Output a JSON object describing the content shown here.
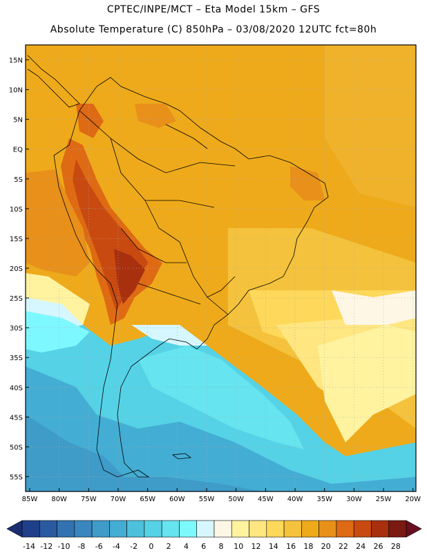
{
  "header": {
    "line1": "CPTEC/INPE/MCT –  Eta Model 15km – GFS",
    "line2": "Absolute Temperature (C) 850hPa – 03/08/2020 12UTC fct=80h"
  },
  "map": {
    "lat_labels": [
      "15N",
      "10N",
      "5N",
      "EQ",
      "5S",
      "10S",
      "15S",
      "20S",
      "25S",
      "30S",
      "35S",
      "40S",
      "45S",
      "50S",
      "55S"
    ],
    "lon_labels": [
      "85W",
      "80W",
      "75W",
      "70W",
      "65W",
      "60W",
      "55W",
      "50W",
      "45W",
      "40W",
      "35W",
      "30W",
      "25W",
      "20W"
    ]
  },
  "colorbar": {
    "levels": [
      "-14",
      "-12",
      "-10",
      "-8",
      "-6",
      "-4",
      "-2",
      "0",
      "2",
      "4",
      "6",
      "8",
      "10",
      "12",
      "14",
      "16",
      "18",
      "20",
      "22",
      "24",
      "26",
      "28"
    ],
    "colors": [
      "#1f3f8a",
      "#2a5aa0",
      "#3272b0",
      "#3a86be",
      "#3f9bc8",
      "#44add3",
      "#4dc0dc",
      "#55d2e6",
      "#66e4f0",
      "#7ef8ff",
      "#d6f7ff",
      "#fff7e6",
      "#fff3a0",
      "#ffe680",
      "#fdd85a",
      "#f4c23c",
      "#eeaa1a",
      "#e8901a",
      "#de6a14",
      "#c84a10",
      "#a8300e",
      "#7a1a10"
    ],
    "low_arrow_color": "#1a2d70",
    "high_arrow_color": "#6a0f20"
  }
}
